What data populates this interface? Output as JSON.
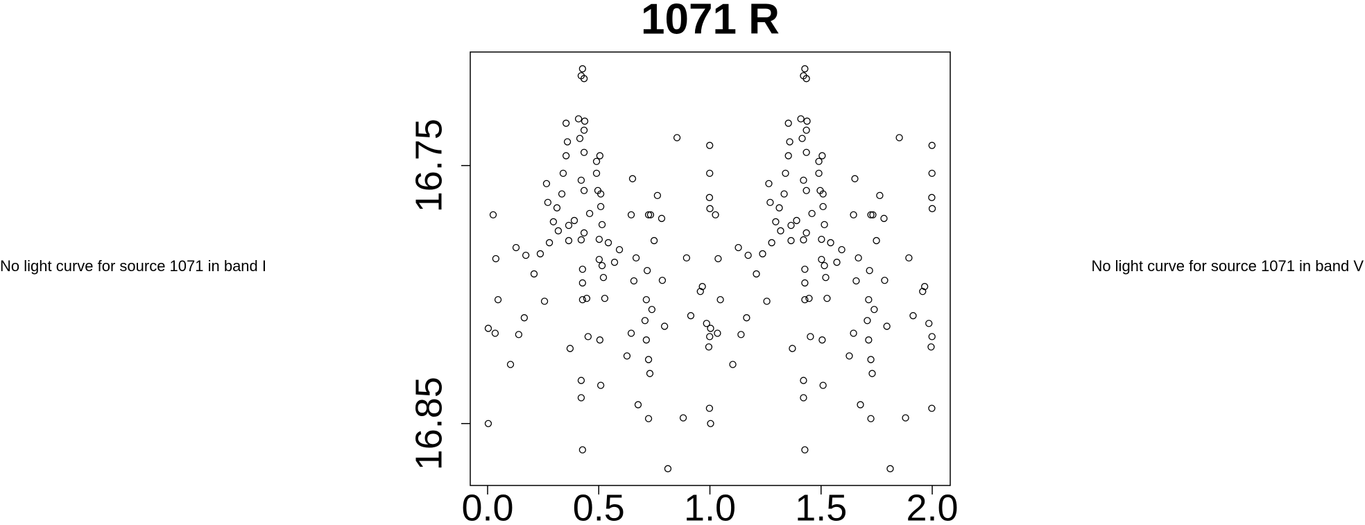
{
  "chart_data": {
    "type": "scatter",
    "title": "1071 R",
    "annotations": [
      "No light curve for source 1071 in band I",
      "No light curve for source 1071 in band V"
    ],
    "xlim": [
      -0.078,
      2.081
    ],
    "ylim": [
      16.874,
      16.706
    ],
    "xticks": [
      {
        "value": 0,
        "label": "0.0"
      },
      {
        "value": 0.5,
        "label": "0.5"
      },
      {
        "value": 1,
        "label": "1.0"
      },
      {
        "value": 1.5,
        "label": "1.5"
      },
      {
        "value": 2,
        "label": "2.0"
      }
    ],
    "yticks": [
      16.75,
      16.85
    ],
    "series": [
      {
        "color": "#000000",
        "x": [
          0.003,
          0.025,
          0.037,
          0.003,
          0.034,
          0.047,
          0.103,
          0.128,
          0.14,
          0.165,
          0.172,
          0.209,
          0.237,
          0.256,
          0.265,
          0.271,
          0.278,
          0.296,
          0.312,
          0.318,
          0.334,
          0.34,
          0.353,
          0.353,
          0.359,
          0.365,
          0.365,
          0.371,
          0.39,
          0.409,
          0.415,
          0.421,
          0.421,
          0.427,
          0.421,
          0.434,
          0.427,
          0.427,
          0.427,
          0.421,
          0.421,
          0.427,
          0.434,
          0.437,
          0.434,
          0.434,
          0.434,
          0.446,
          0.452,
          0.459,
          0.49,
          0.49,
          0.496,
          0.502,
          0.502,
          0.505,
          0.509,
          0.509,
          0.505,
          0.509,
          0.515,
          0.515,
          0.521,
          0.527,
          0.543,
          0.571,
          0.593,
          0.627,
          0.646,
          0.652,
          0.646,
          0.658,
          0.668,
          0.677,
          0.708,
          0.714,
          0.718,
          0.724,
          0.733,
          0.714,
          0.724,
          0.73,
          0.724,
          0.739,
          0.749,
          0.764,
          0.783,
          0.786,
          0.796,
          0.811,
          0.852,
          0.88,
          0.895,
          0.914,
          0.957,
          0.966,
          0.985,
          0.995,
          0.998,
          0.999,
          0.999,
          0.998,
          1.0,
          0.999,
          1.003,
          1.025,
          1.037,
          1.003,
          1.034,
          1.047,
          1.103,
          1.128,
          1.14,
          1.165,
          1.172,
          1.209,
          1.237,
          1.256,
          1.265,
          1.271,
          1.278,
          1.296,
          1.312,
          1.318,
          1.334,
          1.34,
          1.353,
          1.353,
          1.359,
          1.365,
          1.365,
          1.371,
          1.39,
          1.409,
          1.415,
          1.421,
          1.421,
          1.427,
          1.421,
          1.434,
          1.427,
          1.427,
          1.427,
          1.421,
          1.421,
          1.427,
          1.434,
          1.437,
          1.434,
          1.434,
          1.434,
          1.446,
          1.452,
          1.459,
          1.49,
          1.49,
          1.496,
          1.502,
          1.502,
          1.505,
          1.509,
          1.509,
          1.505,
          1.509,
          1.515,
          1.515,
          1.521,
          1.527,
          1.543,
          1.571,
          1.593,
          1.627,
          1.646,
          1.652,
          1.646,
          1.658,
          1.668,
          1.677,
          1.708,
          1.714,
          1.718,
          1.724,
          1.733,
          1.714,
          1.724,
          1.73,
          1.724,
          1.739,
          1.749,
          1.764,
          1.783,
          1.786,
          1.796,
          1.811,
          1.852,
          1.88,
          1.895,
          1.914,
          1.957,
          1.966,
          1.985,
          1.995,
          1.998,
          1.999,
          1.999,
          1.998,
          2.0,
          1.999
        ],
        "values": [
          16.85,
          16.7691,
          16.7861,
          16.8131,
          16.815,
          16.802,
          16.8271,
          16.7818,
          16.8155,
          16.809,
          16.7848,
          16.792,
          16.7842,
          16.8026,
          16.757,
          16.7643,
          16.7799,
          16.7718,
          16.7664,
          16.7753,
          16.761,
          16.753,
          16.7462,
          16.7336,
          16.7408,
          16.7732,
          16.7791,
          16.8209,
          16.7713,
          16.7319,
          16.7395,
          16.7557,
          16.7788,
          16.7125,
          16.7152,
          16.7163,
          16.7902,
          16.7955,
          16.802,
          16.8333,
          16.84,
          16.8602,
          16.7761,
          16.7328,
          16.7363,
          16.7449,
          16.7597,
          16.8015,
          16.8163,
          16.7686,
          16.7484,
          16.753,
          16.7597,
          16.7786,
          16.7864,
          16.8176,
          16.8352,
          16.761,
          16.7462,
          16.7659,
          16.7729,
          16.7888,
          16.7934,
          16.8015,
          16.7799,
          16.7875,
          16.7826,
          16.8238,
          16.815,
          16.7551,
          16.7691,
          16.7947,
          16.7858,
          16.8427,
          16.8101,
          16.802,
          16.7907,
          16.7691,
          16.7691,
          16.8176,
          16.8252,
          16.8306,
          16.8481,
          16.8058,
          16.7791,
          16.7616,
          16.7705,
          16.7945,
          16.8123,
          16.8675,
          16.7392,
          16.8478,
          16.7858,
          16.8082,
          16.7988,
          16.7969,
          16.8112,
          16.8203,
          16.8441,
          16.7422,
          16.753,
          16.7624,
          16.7667,
          16.8163,
          16.85,
          16.7691,
          16.7861,
          16.8131,
          16.815,
          16.802,
          16.8271,
          16.7818,
          16.8155,
          16.809,
          16.7848,
          16.792,
          16.7842,
          16.8026,
          16.757,
          16.7643,
          16.7799,
          16.7718,
          16.7664,
          16.7753,
          16.761,
          16.753,
          16.7462,
          16.7336,
          16.7408,
          16.7732,
          16.7791,
          16.8209,
          16.7713,
          16.7319,
          16.7395,
          16.7557,
          16.7788,
          16.7125,
          16.7152,
          16.7163,
          16.7902,
          16.7955,
          16.802,
          16.8333,
          16.84,
          16.8602,
          16.7761,
          16.7328,
          16.7363,
          16.7449,
          16.7597,
          16.8015,
          16.8163,
          16.7686,
          16.7484,
          16.753,
          16.7597,
          16.7786,
          16.7864,
          16.8176,
          16.8352,
          16.761,
          16.7462,
          16.7659,
          16.7729,
          16.7888,
          16.7934,
          16.8015,
          16.7799,
          16.7875,
          16.7826,
          16.8238,
          16.815,
          16.7551,
          16.7691,
          16.7947,
          16.7858,
          16.8427,
          16.8101,
          16.802,
          16.7907,
          16.7691,
          16.7691,
          16.8176,
          16.8252,
          16.8306,
          16.8481,
          16.8058,
          16.7791,
          16.7616,
          16.7705,
          16.7945,
          16.8123,
          16.8675,
          16.7392,
          16.8478,
          16.7858,
          16.8082,
          16.7988,
          16.7969,
          16.8112,
          16.8203,
          16.8441,
          16.7422,
          16.753,
          16.7624,
          16.7667,
          16.8163
        ]
      }
    ]
  }
}
